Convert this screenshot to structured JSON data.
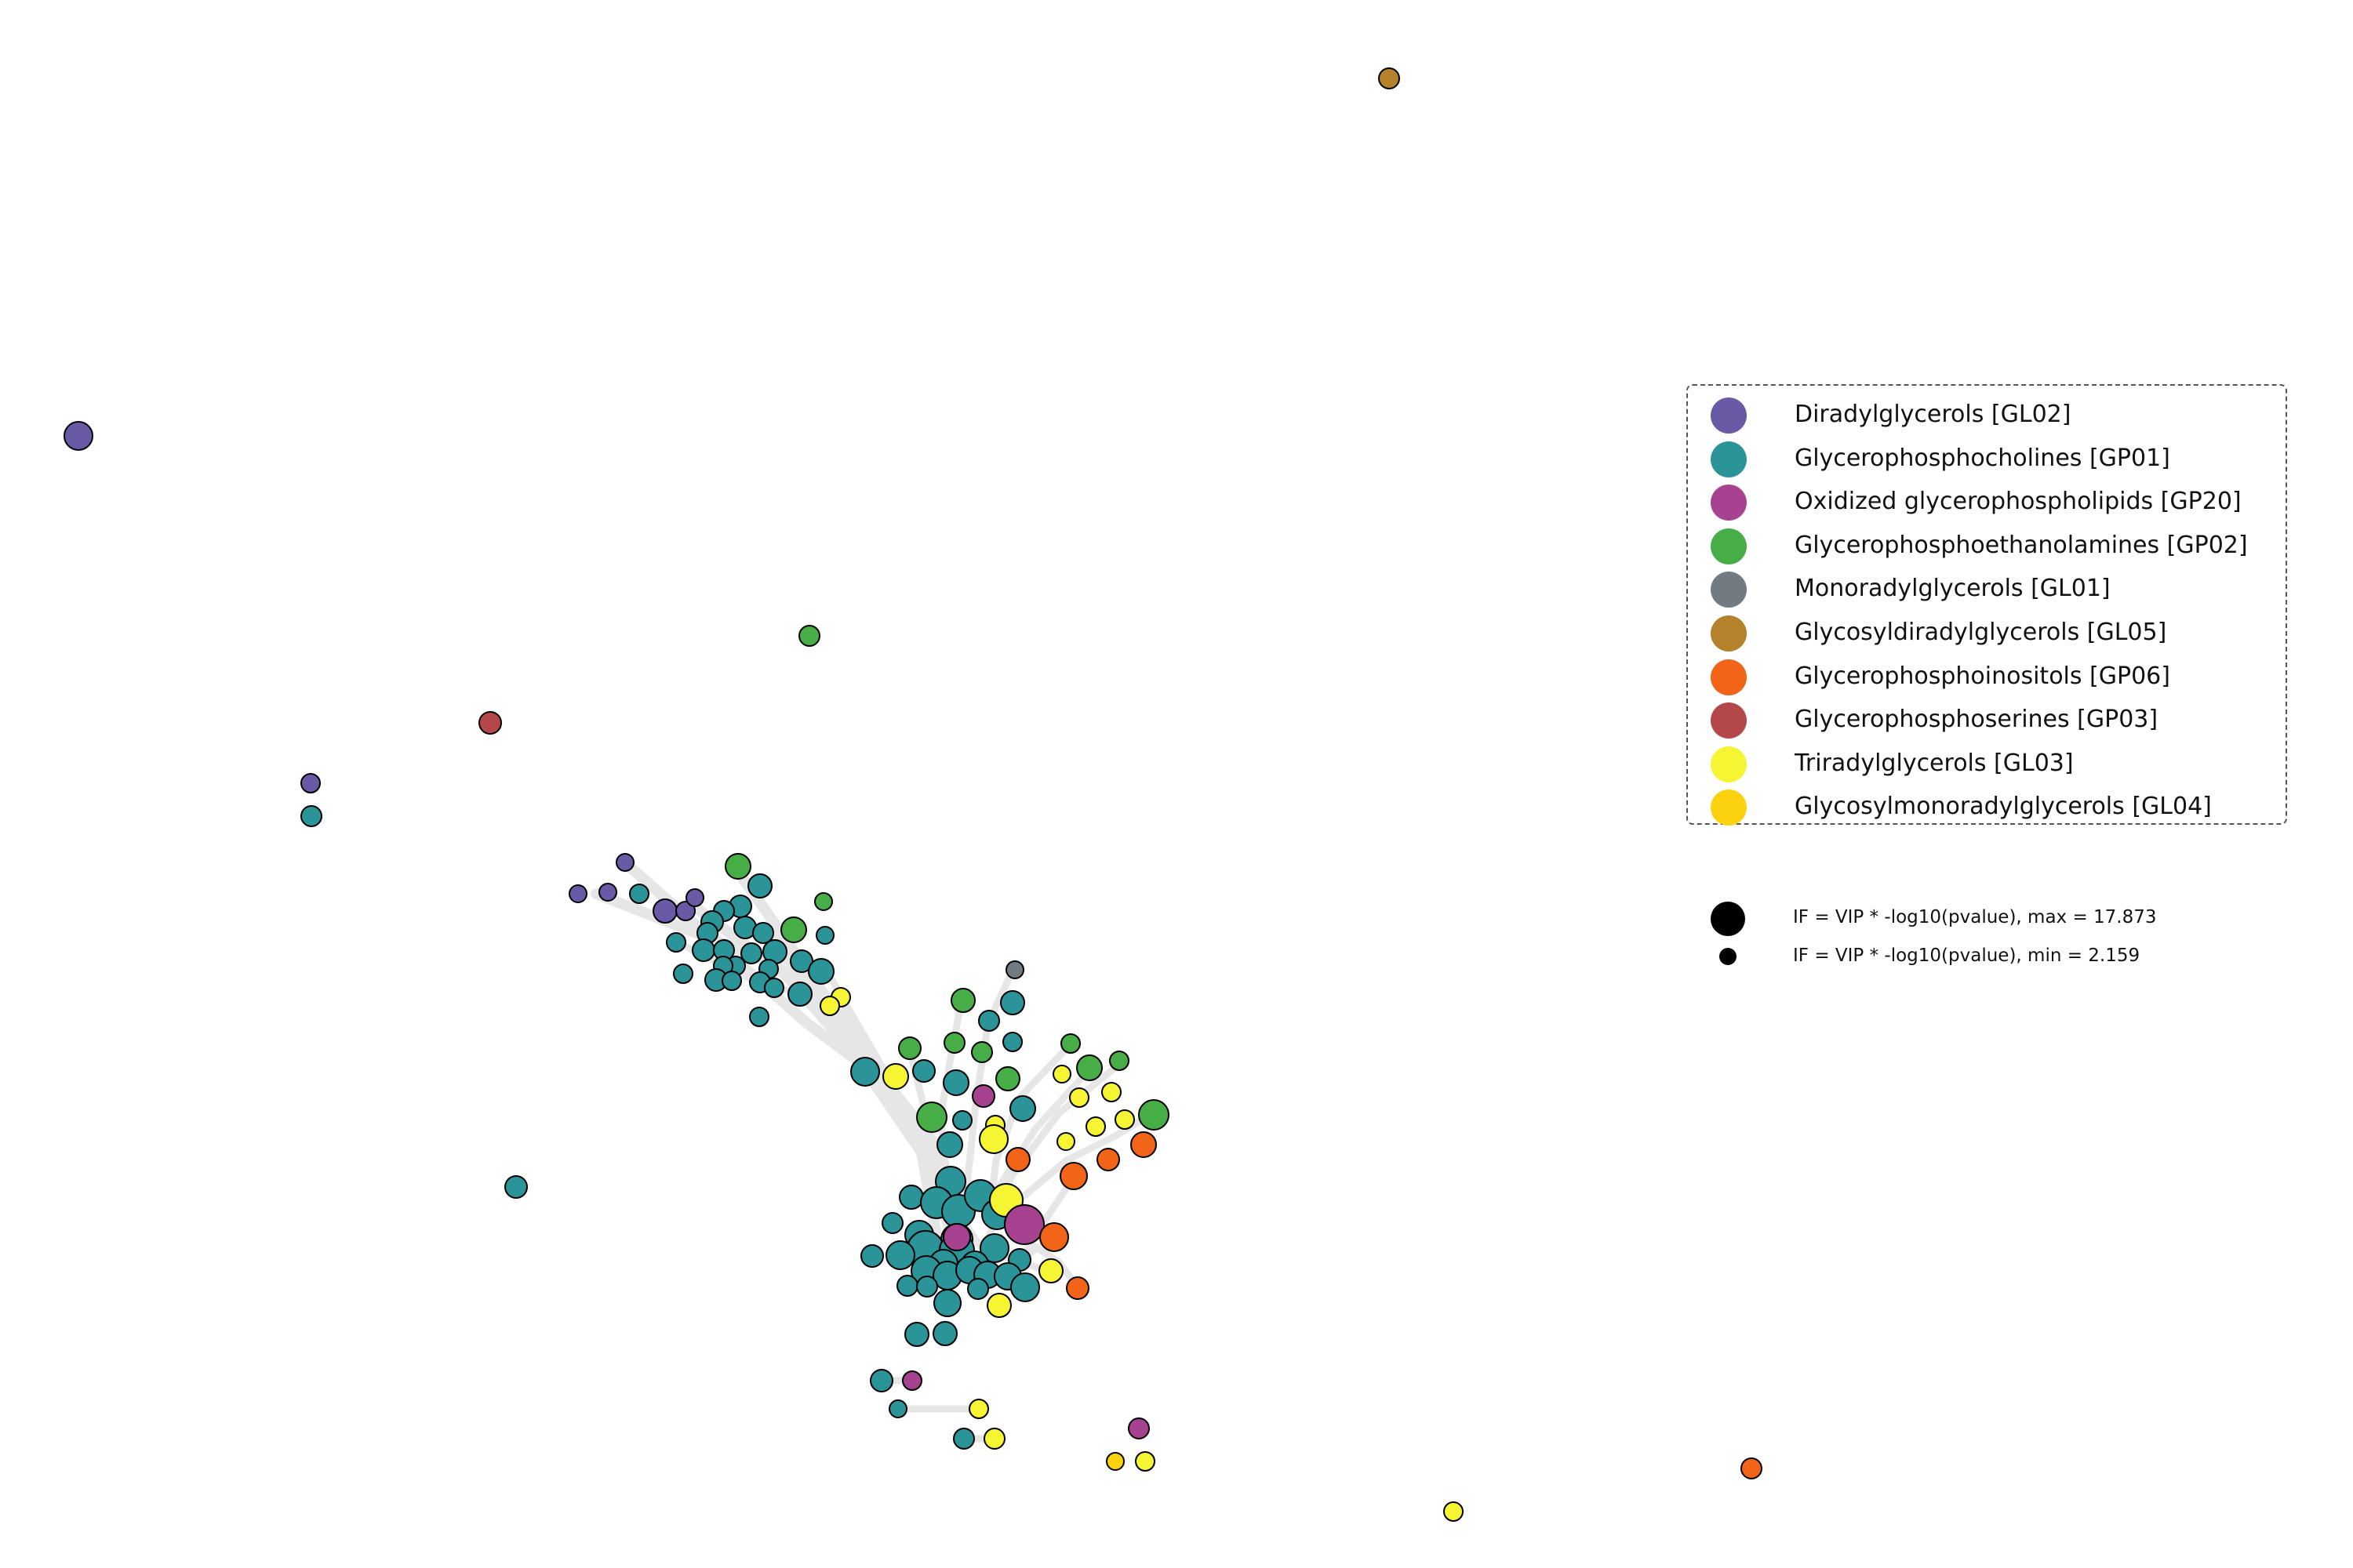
{
  "colors": {
    "GL02": "#6a5aa6",
    "GP01": "#2b9499",
    "GP20": "#a6428f",
    "GP02": "#47ad47",
    "GL01": "#737b82",
    "GL05": "#b3822a",
    "GP06": "#f26418",
    "GP03": "#b34749",
    "GL03": "#f5f534",
    "GL04": "#fcd20e",
    "edge": "#e6e6e6",
    "node_stroke": "#000000"
  },
  "legend": {
    "classes": [
      {
        "key": "GL02",
        "label": "Diradylglycerols [GL02]"
      },
      {
        "key": "GP01",
        "label": "Glycerophosphocholines [GP01]"
      },
      {
        "key": "GP20",
        "label": "Oxidized glycerophospholipids [GP20]"
      },
      {
        "key": "GP02",
        "label": "Glycerophosphoethanolamines [GP02]"
      },
      {
        "key": "GL01",
        "label": "Monoradylglycerols [GL01]"
      },
      {
        "key": "GL05",
        "label": "Glycosyldiradylglycerols [GL05]"
      },
      {
        "key": "GP06",
        "label": "Glycerophosphoinositols [GP06]"
      },
      {
        "key": "GP03",
        "label": "Glycerophosphoserines [GP03]"
      },
      {
        "key": "GL03",
        "label": "Triradylglycerols [GL03]"
      },
      {
        "key": "GL04",
        "label": "Glycosylmonoradylglycerols [GL04]"
      }
    ],
    "size_max_label": "IF = VIP * -log10(pvalue), max = 17.873",
    "size_min_label": "IF = VIP * -log10(pvalue), min = 2.159"
  }
}
